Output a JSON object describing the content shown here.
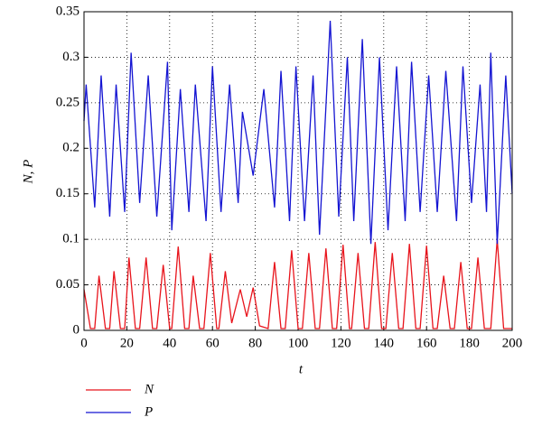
{
  "chart_data": {
    "type": "line",
    "xlabel": "t",
    "ylabel": "N, P",
    "xlim": [
      0,
      200
    ],
    "xticks": [
      0,
      20,
      40,
      60,
      80,
      100,
      120,
      140,
      160,
      180,
      200
    ],
    "ylim": [
      0,
      0.35
    ],
    "yticks": [
      0,
      0.05,
      0.1,
      0.15,
      0.2,
      0.25,
      0.3,
      0.35
    ],
    "grid": true,
    "series": [
      {
        "name": "N",
        "color": "#e8141c",
        "x": [
          0,
          3,
          5,
          7,
          10,
          12,
          14,
          17,
          19,
          21,
          24,
          26,
          29,
          32,
          34,
          37,
          40,
          41,
          44,
          47,
          49,
          51,
          54,
          56,
          59,
          62,
          63,
          66,
          69,
          73,
          76,
          79,
          82,
          86,
          89,
          92,
          94,
          97,
          100,
          102,
          105,
          108,
          110,
          113,
          116,
          118,
          121,
          124,
          125,
          128,
          131,
          133,
          136,
          139,
          141,
          144,
          147,
          149,
          152,
          155,
          157,
          160,
          163,
          165,
          168,
          171,
          173,
          176,
          179,
          181,
          184,
          187,
          190,
          193,
          196,
          200
        ],
        "values": [
          0.045,
          0.002,
          0.002,
          0.06,
          0.002,
          0.002,
          0.065,
          0.002,
          0.002,
          0.08,
          0.002,
          0.002,
          0.08,
          0.002,
          0.002,
          0.072,
          0.002,
          0.002,
          0.092,
          0.002,
          0.002,
          0.06,
          0.002,
          0.002,
          0.085,
          0.002,
          0.002,
          0.065,
          0.008,
          0.045,
          0.015,
          0.047,
          0.005,
          0.002,
          0.075,
          0.002,
          0.002,
          0.088,
          0.002,
          0.002,
          0.085,
          0.002,
          0.002,
          0.09,
          0.002,
          0.002,
          0.094,
          0.002,
          0.002,
          0.085,
          0.002,
          0.002,
          0.097,
          0.002,
          0.002,
          0.085,
          0.002,
          0.002,
          0.095,
          0.002,
          0.002,
          0.093,
          0.002,
          0.002,
          0.06,
          0.002,
          0.002,
          0.075,
          0.002,
          0.002,
          0.08,
          0.002,
          0.002,
          0.1,
          0.002,
          0.002
        ]
      },
      {
        "name": "P",
        "color": "#1414d2",
        "x": [
          0,
          1,
          5,
          8,
          12,
          15,
          19,
          22,
          26,
          30,
          34,
          39,
          41,
          45,
          49,
          52,
          57,
          60,
          64,
          68,
          72,
          74,
          79,
          84,
          89,
          92,
          96,
          99,
          103,
          107,
          110,
          115,
          119,
          123,
          126,
          130,
          134,
          138,
          142,
          146,
          150,
          153,
          157,
          161,
          165,
          169,
          174,
          177,
          181,
          185,
          188,
          190,
          193,
          197,
          200
        ],
        "values": [
          0.23,
          0.27,
          0.135,
          0.28,
          0.125,
          0.27,
          0.13,
          0.305,
          0.14,
          0.28,
          0.125,
          0.295,
          0.11,
          0.265,
          0.13,
          0.27,
          0.12,
          0.29,
          0.13,
          0.27,
          0.14,
          0.24,
          0.17,
          0.265,
          0.135,
          0.285,
          0.12,
          0.29,
          0.12,
          0.28,
          0.105,
          0.34,
          0.125,
          0.3,
          0.12,
          0.32,
          0.095,
          0.3,
          0.11,
          0.29,
          0.12,
          0.295,
          0.13,
          0.28,
          0.13,
          0.285,
          0.12,
          0.29,
          0.14,
          0.27,
          0.13,
          0.305,
          0.095,
          0.28,
          0.15
        ]
      }
    ]
  }
}
